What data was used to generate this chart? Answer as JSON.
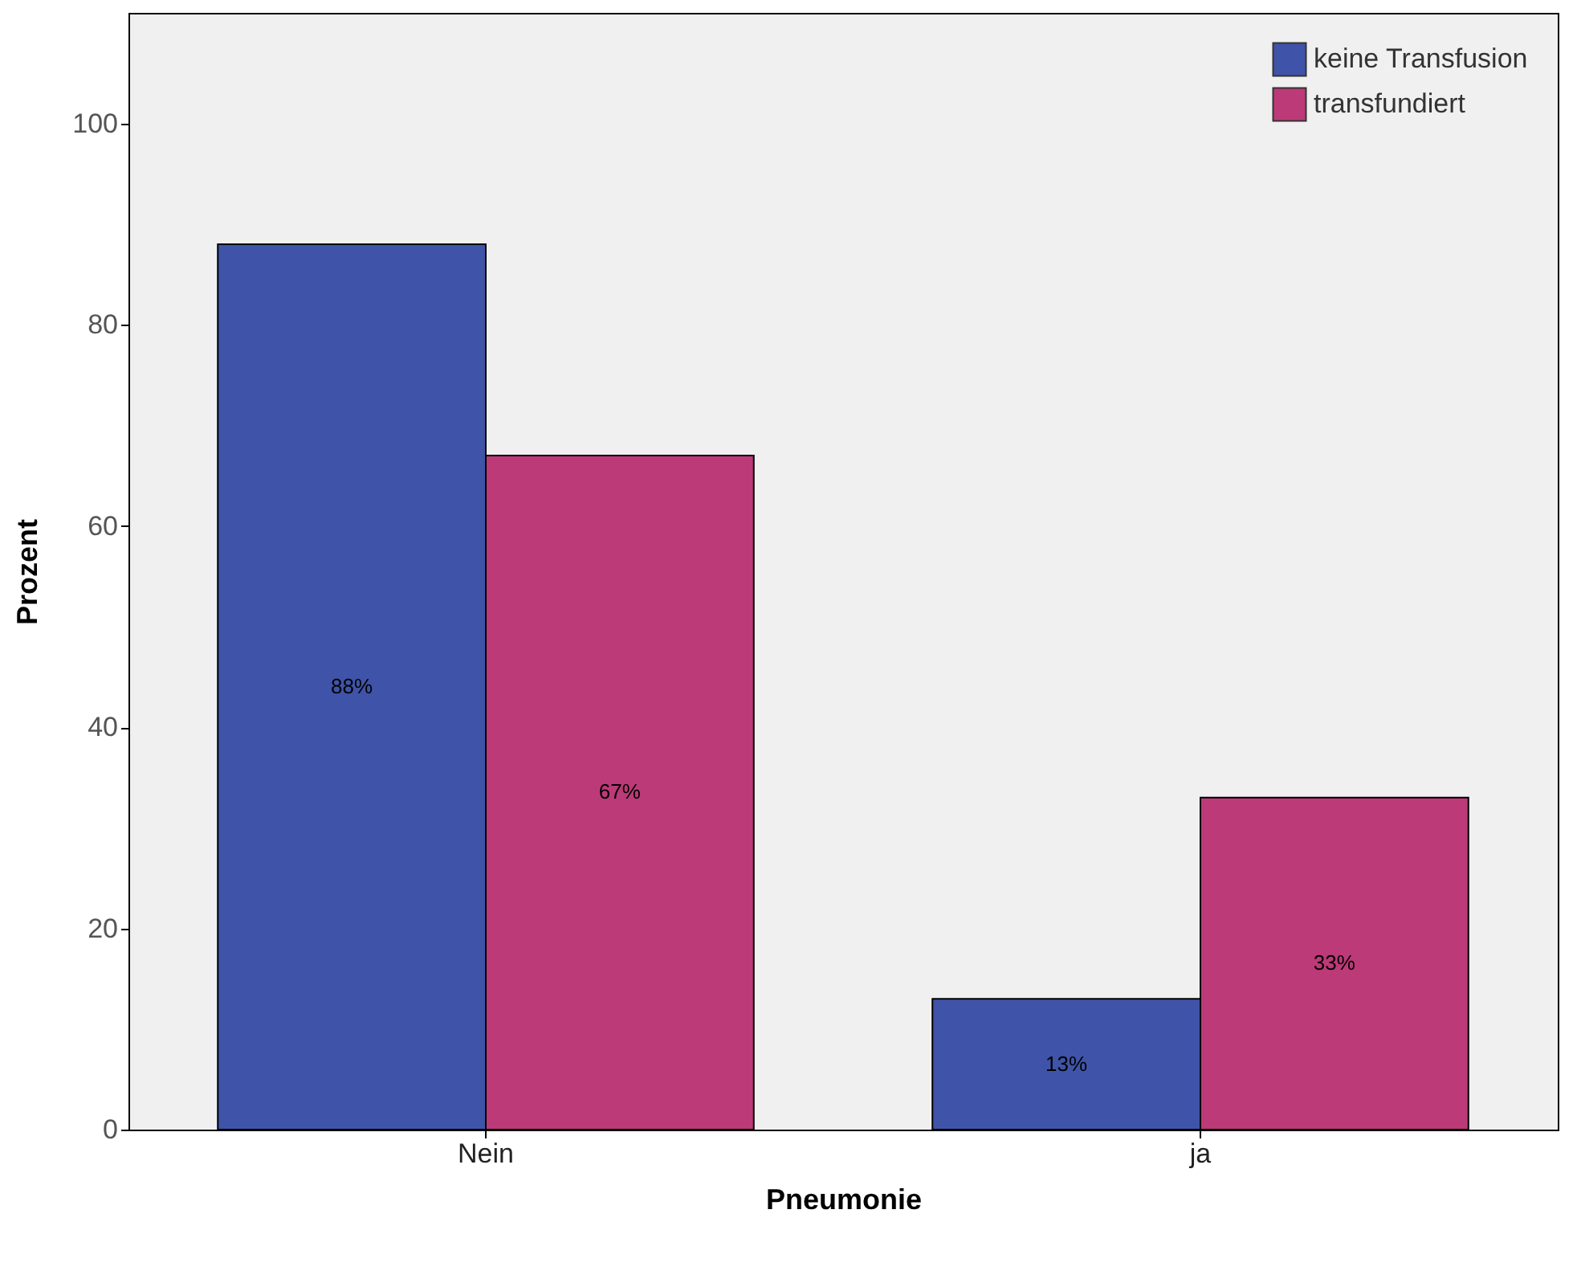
{
  "chart_data": {
    "type": "bar",
    "xlabel": "Pneumonie",
    "ylabel": "Prozent",
    "categories": [
      "Nein",
      "ja"
    ],
    "series": [
      {
        "name": "keine Transfusion",
        "color": "#3f54a8",
        "values": [
          88,
          13
        ],
        "value_labels": [
          "88%",
          "13%"
        ]
      },
      {
        "name": "transfundiert",
        "color": "#bc3a78",
        "values": [
          67,
          33
        ],
        "value_labels": [
          "67%",
          "33%"
        ]
      }
    ],
    "ylim": [
      0,
      111
    ],
    "yticks": [
      0,
      20,
      40,
      60,
      80,
      100
    ],
    "legend": "top right"
  }
}
